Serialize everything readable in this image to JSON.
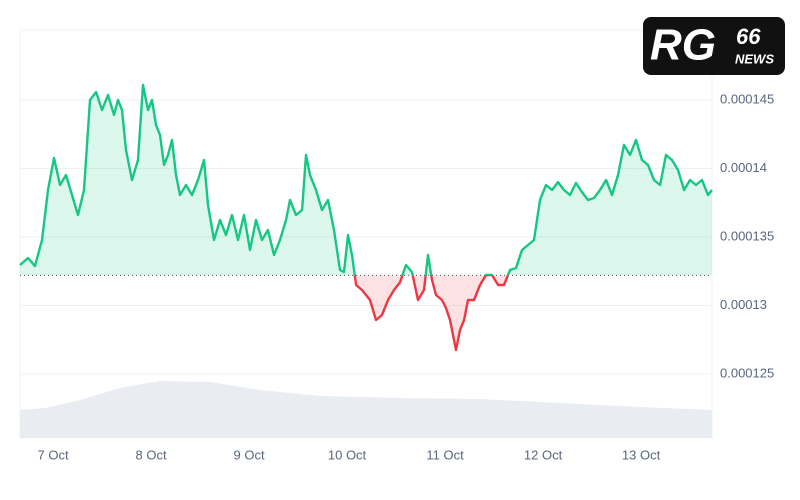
{
  "chart_data": {
    "type": "line",
    "x": [
      6.663,
      6.745,
      6.816,
      6.887,
      6.949,
      7.01,
      7.071,
      7.132,
      7.194,
      7.255,
      7.316,
      7.377,
      7.439,
      7.5,
      7.561,
      7.622,
      7.663,
      7.704,
      7.745,
      7.806,
      7.867,
      7.918,
      7.969,
      8.01,
      8.051,
      8.092,
      8.132,
      8.173,
      8.214,
      8.255,
      8.296,
      8.357,
      8.418,
      8.479,
      8.541,
      8.581,
      8.643,
      8.704,
      8.765,
      8.826,
      8.887,
      8.949,
      9.01,
      9.071,
      9.132,
      9.194,
      9.255,
      9.316,
      9.377,
      9.418,
      9.479,
      9.541,
      9.581,
      9.622,
      9.683,
      9.745,
      9.806,
      9.867,
      9.928,
      9.969,
      10.01,
      10.051,
      10.092,
      10.153,
      10.234,
      10.296,
      10.357,
      10.418,
      10.479,
      10.541,
      10.602,
      10.663,
      10.724,
      10.785,
      10.826,
      10.867,
      10.908,
      10.969,
      11.01,
      11.051,
      11.112,
      11.153,
      11.194,
      11.234,
      11.296,
      11.357,
      11.418,
      11.479,
      11.541,
      11.602,
      11.663,
      11.724,
      11.785,
      11.847,
      11.908,
      11.969,
      12.03,
      12.092,
      12.153,
      12.214,
      12.275,
      12.336,
      12.398,
      12.459,
      12.52,
      12.581,
      12.643,
      12.704,
      12.765,
      12.826,
      12.887,
      12.949,
      13.01,
      13.071,
      13.132,
      13.194,
      13.255,
      13.316,
      13.377,
      13.439,
      13.5,
      13.561,
      13.622,
      13.683,
      13.724
    ],
    "values": [
      0.00013296,
      0.00013347,
      0.00013288,
      0.00013478,
      0.00013843,
      0.00014077,
      0.0001388,
      0.00013953,
      0.00013807,
      0.00013661,
      0.00013843,
      0.000145,
      0.00014558,
      0.00014427,
      0.00014537,
      0.00014391,
      0.000145,
      0.00014427,
      0.00014135,
      0.00013916,
      0.00014062,
      0.0001461,
      0.00014427,
      0.000145,
      0.00014318,
      0.00014245,
      0.00014026,
      0.00014099,
      0.00014208,
      0.00013953,
      0.00013807,
      0.0001388,
      0.00013807,
      0.00013916,
      0.00014062,
      0.00013734,
      0.00013478,
      0.00013624,
      0.00013515,
      0.00013661,
      0.00013478,
      0.00013661,
      0.00013405,
      0.00013624,
      0.00013478,
      0.00013551,
      0.00013369,
      0.00013478,
      0.00013624,
      0.0001377,
      0.00013661,
      0.00013697,
      0.00014099,
      0.00013953,
      0.00013843,
      0.00013697,
      0.0001377,
      0.00013551,
      0.00013259,
      0.00013244,
      0.00013515,
      0.00013369,
      0.0001315,
      0.00013113,
      0.0001304,
      0.00012894,
      0.00012931,
      0.0001304,
      0.00013113,
      0.00013171,
      0.00013296,
      0.00013244,
      0.0001304,
      0.00013113,
      0.00013369,
      0.00013186,
      0.00013077,
      0.0001304,
      0.00012982,
      0.00012894,
      0.00012675,
      0.00012821,
      0.00012894,
      0.0001304,
      0.0001304,
      0.0001315,
      0.00013223,
      0.00013223,
      0.0001315,
      0.0001315,
      0.00013259,
      0.00013274,
      0.00013405,
      0.00013442,
      0.00013478,
      0.0001377,
      0.0001388,
      0.00013843,
      0.00013901,
      0.00013843,
      0.00013807,
      0.00013894,
      0.00013828,
      0.0001377,
      0.00013785,
      0.00013843,
      0.00013916,
      0.00013807,
      0.00013953,
      0.00014172,
      0.00014099,
      0.00014208,
      0.00014062,
      0.00014026,
      0.00013916,
      0.0001388,
      0.00014099,
      0.00014062,
      0.00013989,
      0.00013843,
      0.00013916,
      0.0001388,
      0.00013916,
      0.00013807,
      0.00013843
    ],
    "baseline": 0.0001322,
    "up_color": "#16c784",
    "down_color": "#ea3943",
    "xlim": [
      6.663,
      13.724
    ],
    "xticks": [
      {
        "value": 7,
        "label": "7 Oct"
      },
      {
        "value": 8,
        "label": "8 Oct"
      },
      {
        "value": 9,
        "label": "9 Oct"
      },
      {
        "value": 10,
        "label": "10 Oct"
      },
      {
        "value": 11,
        "label": "11 Oct"
      },
      {
        "value": 12,
        "label": "12 Oct"
      },
      {
        "value": 13,
        "label": "13 Oct"
      }
    ],
    "ylim": [
      0.00012033,
      0.00015011
    ],
    "yticks": [
      0.000125,
      0.00013,
      0.000135,
      0.00014,
      0.000145
    ],
    "grid": true
  },
  "logo": {
    "text": "RG",
    "number": "66",
    "tagline": "NEWS"
  }
}
